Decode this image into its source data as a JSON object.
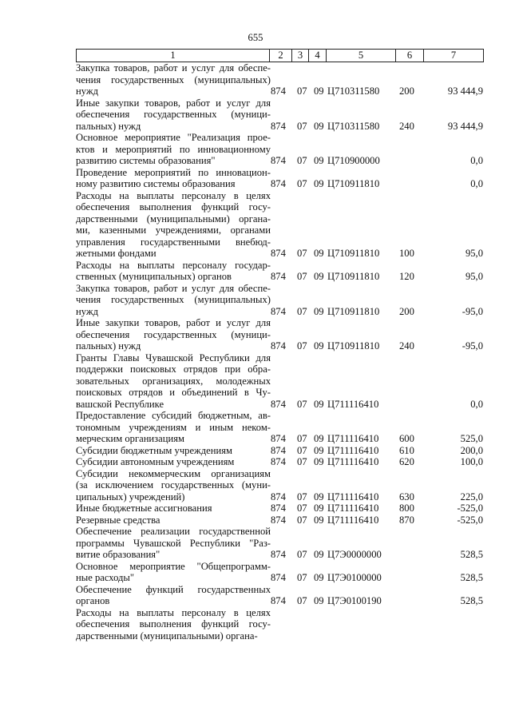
{
  "page_number": "655",
  "header": [
    "1",
    "2",
    "3",
    "4",
    "5",
    "6",
    "7"
  ],
  "rows": [
    {
      "lines": [
        "Закупка товаров, работ и услуг для обеспе-",
        "чения государственных (муниципальных)",
        "нужд"
      ],
      "c2": "874",
      "c3": "07",
      "c4": "09",
      "c5": "Ц710311580",
      "c6": "200",
      "c7": "93 444,9"
    },
    {
      "lines": [
        "Иные закупки товаров, работ и услуг для",
        "обеспечения государственных (муници-",
        "пальных) нужд"
      ],
      "c2": "874",
      "c3": "07",
      "c4": "09",
      "c5": "Ц710311580",
      "c6": "240",
      "c7": "93 444,9"
    },
    {
      "lines": [
        "Основное мероприятие \"Реализация прое-",
        "ктов и мероприятий по инновационному",
        "развитию системы образования\""
      ],
      "c2": "874",
      "c3": "07",
      "c4": "09",
      "c5": "Ц710900000",
      "c6": "",
      "c7": "0,0"
    },
    {
      "lines": [
        "Проведение мероприятий по инновацион-",
        "ному развитию системы образования"
      ],
      "c2": "874",
      "c3": "07",
      "c4": "09",
      "c5": "Ц710911810",
      "c6": "",
      "c7": "0,0"
    },
    {
      "lines": [
        "Расходы на выплаты персоналу в целях",
        "обеспечения выполнения функций госу-",
        "дарственными (муниципальными) органа-",
        "ми, казенными учреждениями, органами",
        "управления государственными внебюд-",
        "жетными фондами"
      ],
      "c2": "874",
      "c3": "07",
      "c4": "09",
      "c5": "Ц710911810",
      "c6": "100",
      "c7": "95,0"
    },
    {
      "lines": [
        "Расходы на выплаты персоналу государ-",
        "ственных (муниципальных) органов"
      ],
      "c2": "874",
      "c3": "07",
      "c4": "09",
      "c5": "Ц710911810",
      "c6": "120",
      "c7": "95,0"
    },
    {
      "lines": [
        "Закупка товаров, работ и услуг для обеспе-",
        "чения государственных (муниципальных)",
        "нужд"
      ],
      "c2": "874",
      "c3": "07",
      "c4": "09",
      "c5": "Ц710911810",
      "c6": "200",
      "c7": "-95,0"
    },
    {
      "lines": [
        "Иные закупки товаров, работ и услуг для",
        "обеспечения государственных (муници-",
        "пальных) нужд"
      ],
      "c2": "874",
      "c3": "07",
      "c4": "09",
      "c5": "Ц710911810",
      "c6": "240",
      "c7": "-95,0"
    },
    {
      "lines": [
        "Гранты Главы Чувашской Республики для",
        "поддержки поисковых отрядов при обра-",
        "зовательных организациях, молодежных",
        "поисковых отрядов и объединений в Чу-",
        "вашской Республике"
      ],
      "c2": "874",
      "c3": "07",
      "c4": "09",
      "c5": "Ц711116410",
      "c6": "",
      "c7": "0,0"
    },
    {
      "lines": [
        "Предоставление субсидий бюджетным, ав-",
        "тономным учреждениям и иным неком-",
        "мерческим организациям"
      ],
      "c2": "874",
      "c3": "07",
      "c4": "09",
      "c5": "Ц711116410",
      "c6": "600",
      "c7": "525,0"
    },
    {
      "lines": [
        "Субсидии бюджетным учреждениям"
      ],
      "c2": "874",
      "c3": "07",
      "c4": "09",
      "c5": "Ц711116410",
      "c6": "610",
      "c7": "200,0"
    },
    {
      "lines": [
        "Субсидии автономным учреждениям"
      ],
      "c2": "874",
      "c3": "07",
      "c4": "09",
      "c5": "Ц711116410",
      "c6": "620",
      "c7": "100,0"
    },
    {
      "lines": [
        "Субсидии некоммерческим организациям",
        "(за исключением государственных (муни-",
        "ципальных) учреждений)"
      ],
      "c2": "874",
      "c3": "07",
      "c4": "09",
      "c5": "Ц711116410",
      "c6": "630",
      "c7": "225,0"
    },
    {
      "lines": [
        "Иные бюджетные ассигнования"
      ],
      "c2": "874",
      "c3": "07",
      "c4": "09",
      "c5": "Ц711116410",
      "c6": "800",
      "c7": "-525,0"
    },
    {
      "lines": [
        "Резервные средства"
      ],
      "c2": "874",
      "c3": "07",
      "c4": "09",
      "c5": "Ц711116410",
      "c6": "870",
      "c7": "-525,0"
    },
    {
      "lines": [
        "Обеспечение реализации государственной",
        "программы Чувашской Республики \"Раз-",
        "витие образования\""
      ],
      "c2": "874",
      "c3": "07",
      "c4": "09",
      "c5": "Ц7Э0000000",
      "c6": "",
      "c7": "528,5"
    },
    {
      "lines": [
        "Основное мероприятие \"Общепрограмм-",
        "ные расходы\""
      ],
      "c2": "874",
      "c3": "07",
      "c4": "09",
      "c5": "Ц7Э0100000",
      "c6": "",
      "c7": "528,5"
    },
    {
      "lines": [
        "Обеспечение функций государственных",
        "органов"
      ],
      "c2": "874",
      "c3": "07",
      "c4": "09",
      "c5": "Ц7Э0100190",
      "c6": "",
      "c7": "528,5"
    },
    {
      "lines": [
        "Расходы на выплаты персоналу в целях",
        "обеспечения выполнения функций госу-",
        "дарственными (муниципальными) органа-"
      ],
      "c2": "",
      "c3": "",
      "c4": "",
      "c5": "",
      "c6": "",
      "c7": ""
    }
  ]
}
